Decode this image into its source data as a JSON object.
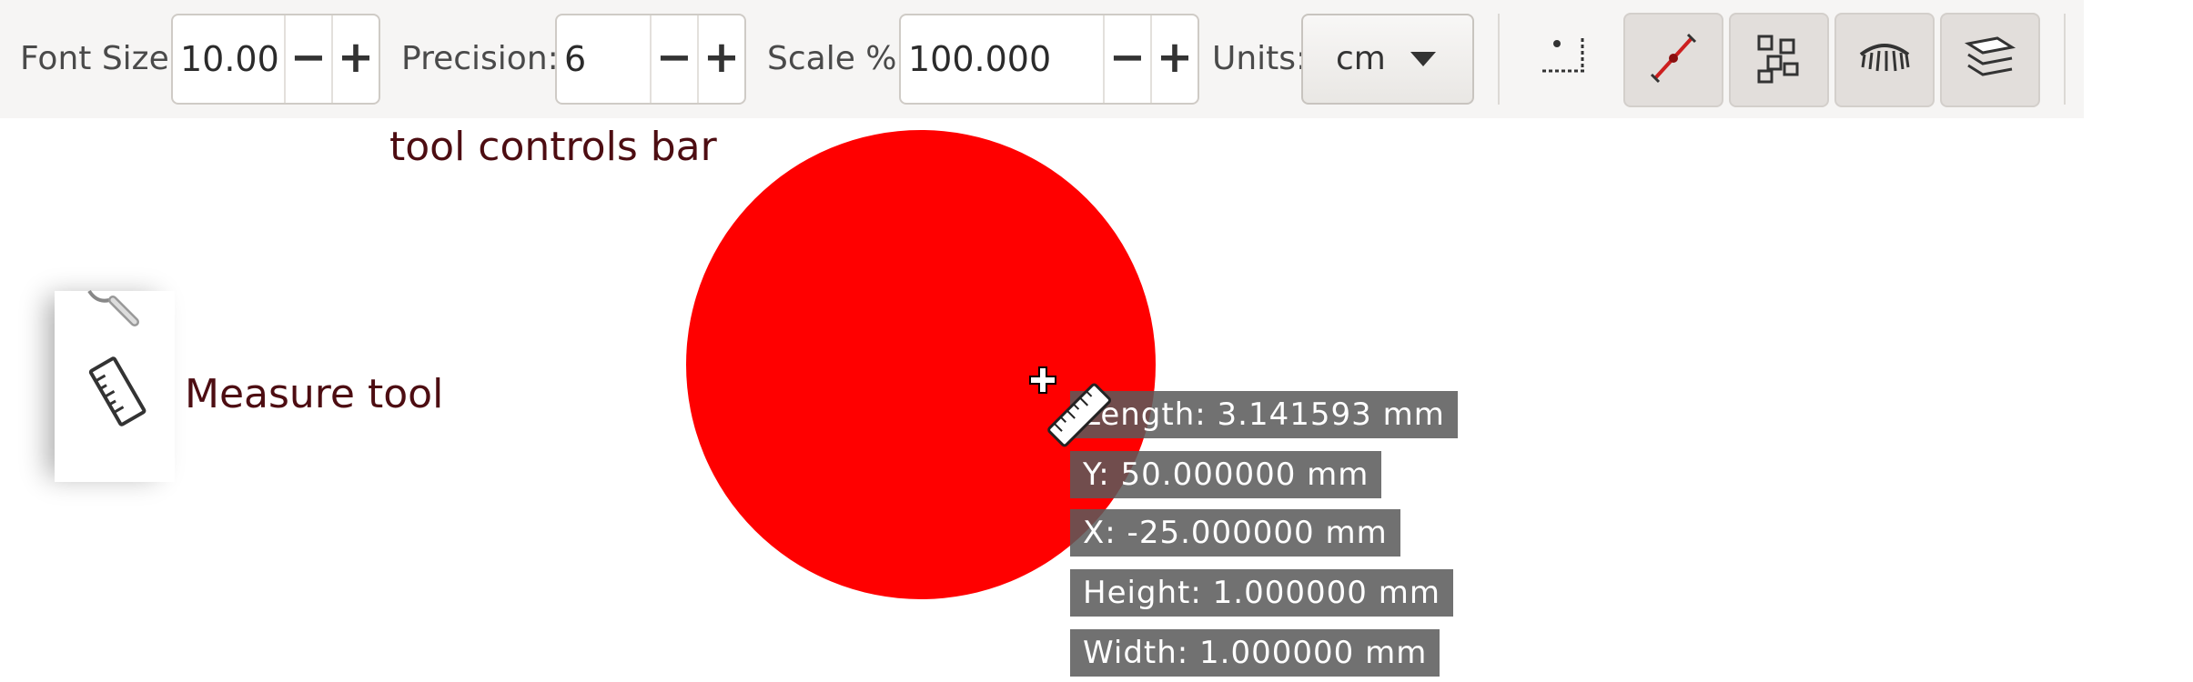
{
  "toolbar": {
    "font_size": {
      "label": "Font Size:",
      "value": "10.00",
      "minus": "−",
      "plus": "+"
    },
    "precision": {
      "label": "Precision:",
      "value": "6",
      "minus": "−",
      "plus": "+"
    },
    "scale": {
      "label": "Scale %:",
      "value": "100.000",
      "minus": "−",
      "plus": "+"
    },
    "units": {
      "label": "Units:",
      "value": "cm"
    },
    "buttons": [
      {
        "icon": "measure-offset-icon",
        "pressed": false
      },
      {
        "icon": "mark-dimension-icon",
        "pressed": true
      },
      {
        "icon": "convert-to-item-icon",
        "pressed": true
      },
      {
        "icon": "ignore-hidden-icon",
        "pressed": true
      },
      {
        "icon": "layers-only-icon",
        "pressed": true
      }
    ]
  },
  "annotations": {
    "toolbar_caption": "tool controls bar",
    "tool_caption": "Measure tool"
  },
  "canvas": {
    "circle_color": "#ff0000",
    "measurements": {
      "length": "Length: 3.141593 mm",
      "y": "Y: 50.000000 mm",
      "x": "X: -25.000000 mm",
      "height": "Height: 1.000000 mm",
      "width": "Width: 1.000000 mm"
    }
  },
  "toolbox": {
    "items": [
      {
        "icon": "zoom-icon"
      },
      {
        "icon": "measure-ruler-icon"
      }
    ]
  }
}
